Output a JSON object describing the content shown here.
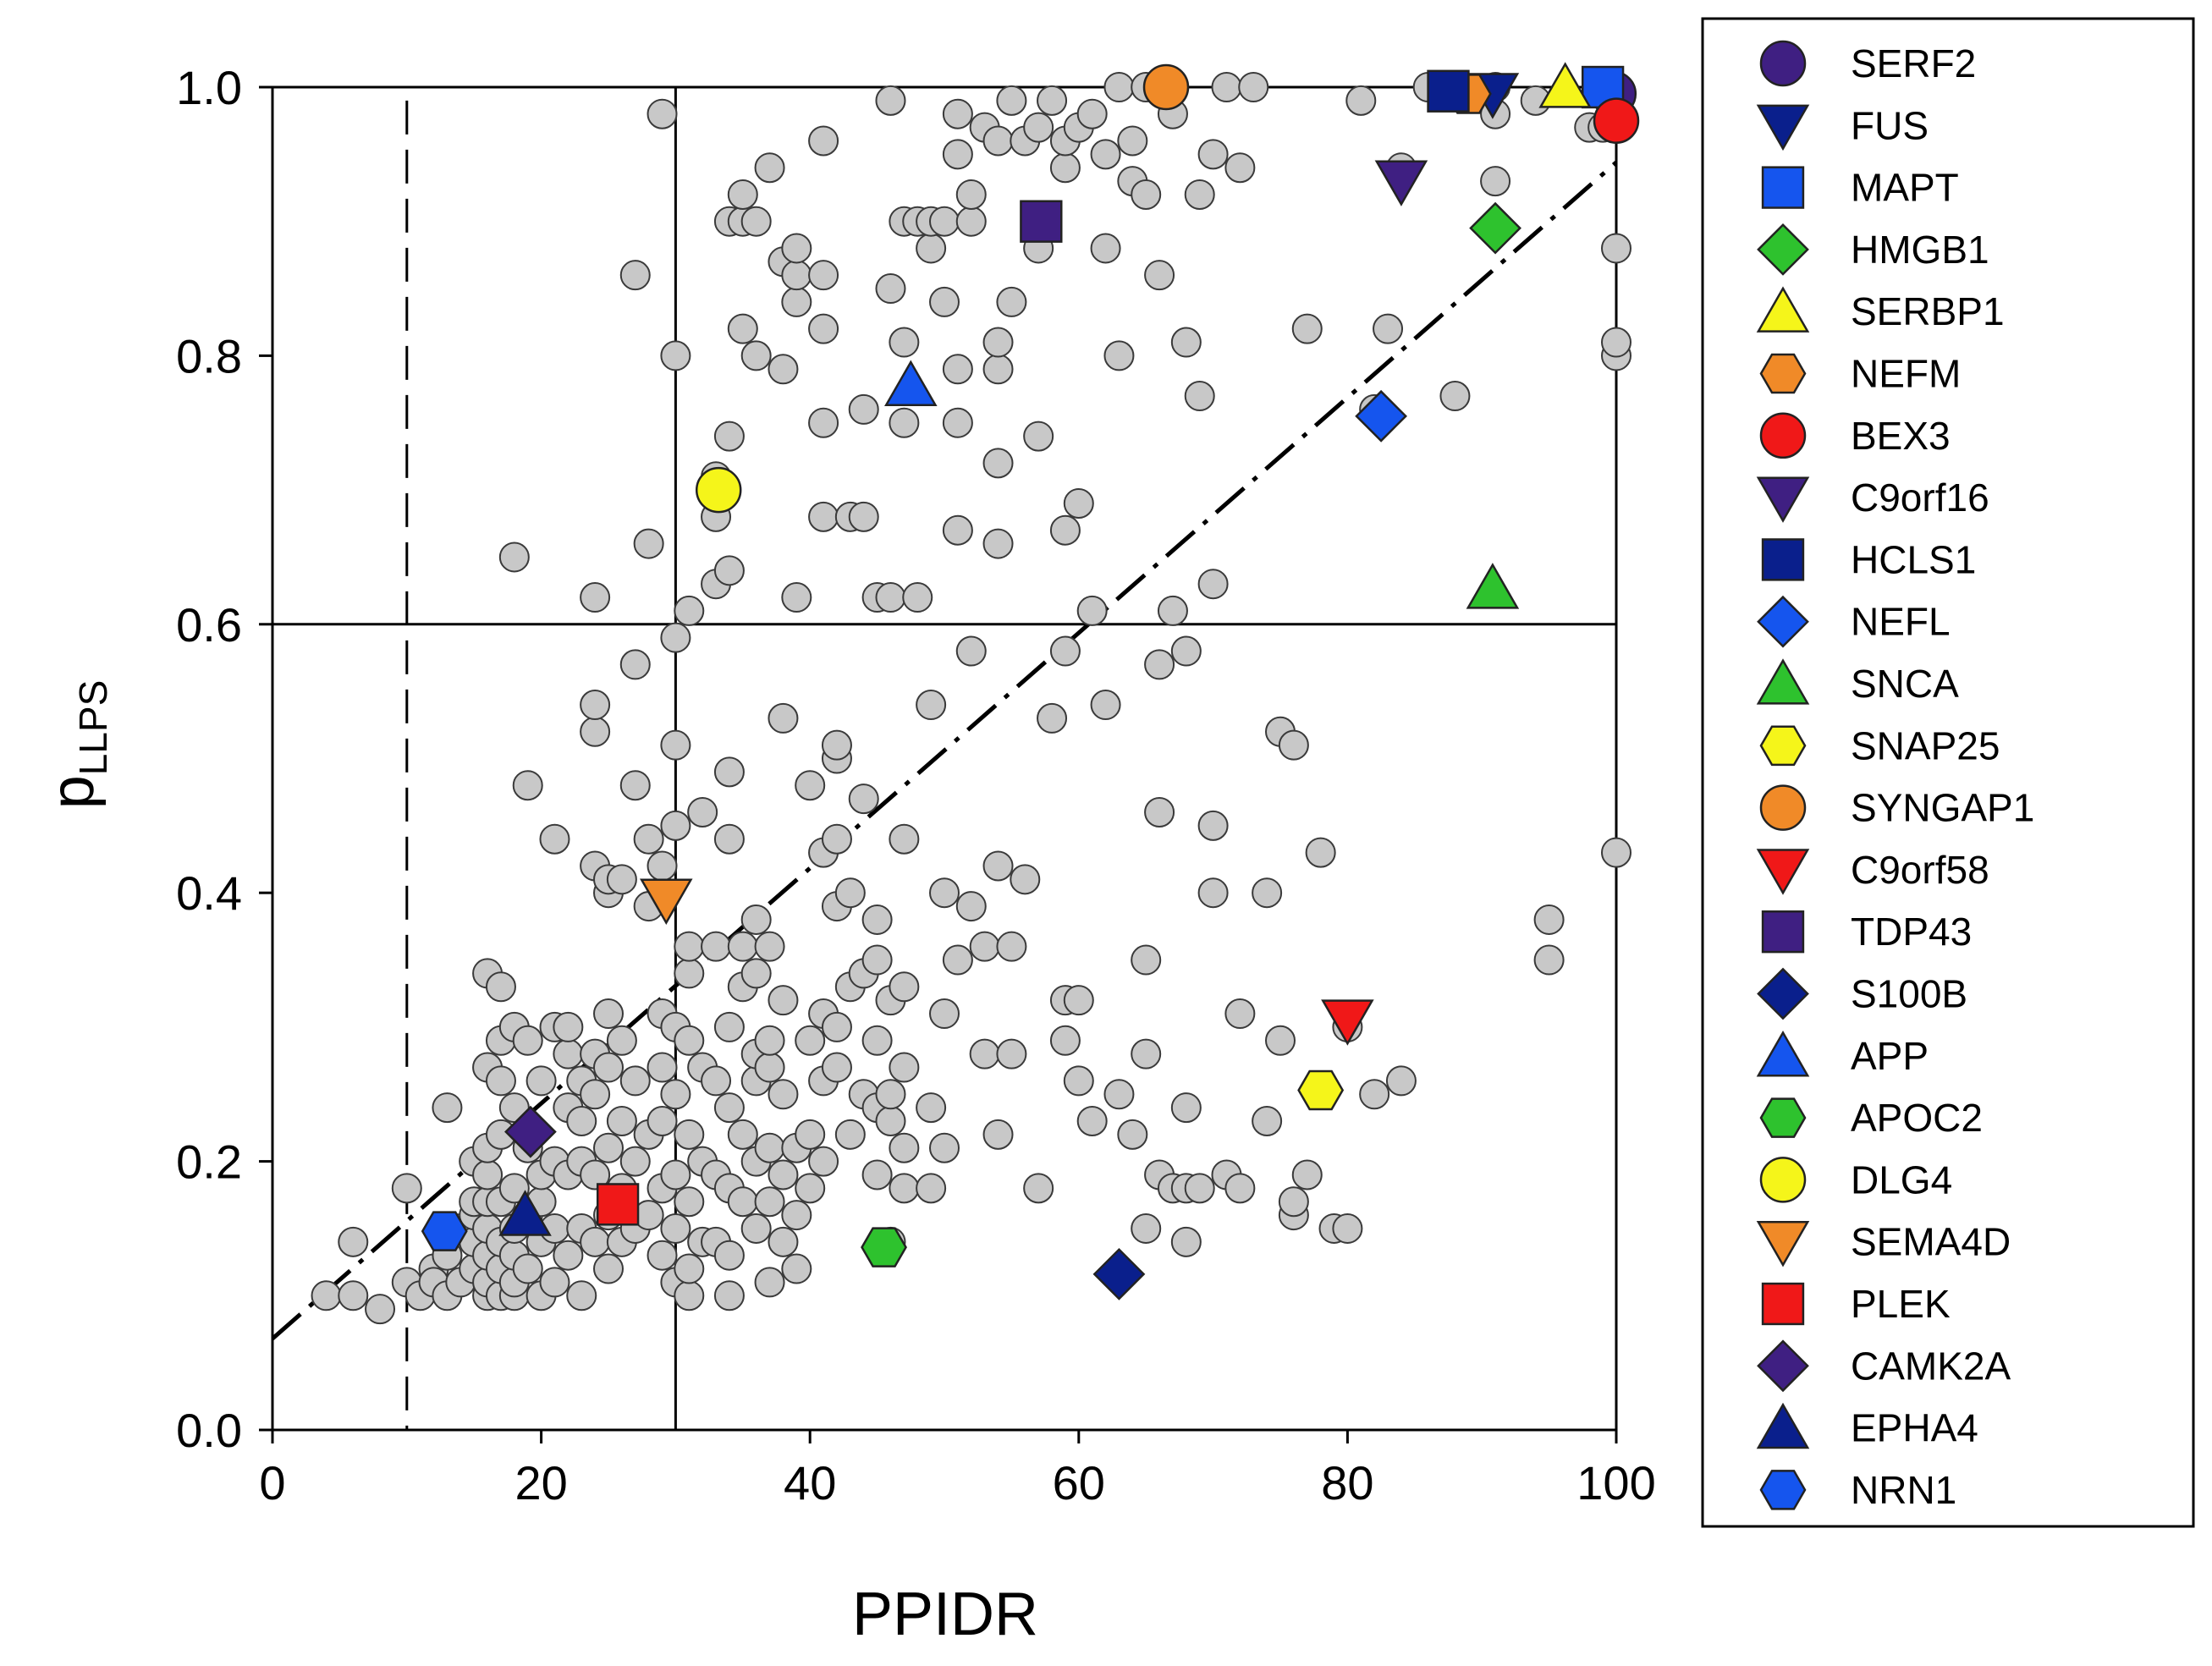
{
  "chart_data": {
    "type": "scatter",
    "xlabel": "PPIDR",
    "ylabel": "p",
    "ylabel_subscript": "LLPS",
    "xlim": [
      0,
      100
    ],
    "ylim": [
      0,
      1.0
    ],
    "x_ticks": [
      "0",
      "20",
      "40",
      "60",
      "80",
      "100"
    ],
    "y_ticks": [
      "0.0",
      "0.2",
      "0.4",
      "0.6",
      "0.8",
      "1.0"
    ],
    "grid": false,
    "legend_position": "right",
    "reference_lines": {
      "vertical_dashed_x": 10,
      "vertical_solid_x": 30,
      "horizontal_solid_y": 0.6,
      "trend_line": {
        "style": "dash-dot",
        "intercept": 0.068,
        "slope": 0.00876
      }
    },
    "background_points_color": "#c8c8c8",
    "background_points": [
      [
        4,
        0.1
      ],
      [
        6,
        0.1
      ],
      [
        6,
        0.14
      ],
      [
        8,
        0.09
      ],
      [
        10,
        0.11
      ],
      [
        10,
        0.18
      ],
      [
        11,
        0.1
      ],
      [
        12,
        0.12
      ],
      [
        12,
        0.11
      ],
      [
        13,
        0.1
      ],
      [
        13,
        0.13
      ],
      [
        13,
        0.24
      ],
      [
        14,
        0.11
      ],
      [
        14,
        0.15
      ],
      [
        15,
        0.12
      ],
      [
        15,
        0.14
      ],
      [
        15,
        0.16
      ],
      [
        15,
        0.17
      ],
      [
        15,
        0.2
      ],
      [
        16,
        0.1
      ],
      [
        16,
        0.11
      ],
      [
        16,
        0.13
      ],
      [
        16,
        0.15
      ],
      [
        16,
        0.17
      ],
      [
        16,
        0.19
      ],
      [
        16,
        0.21
      ],
      [
        16,
        0.27
      ],
      [
        16,
        0.34
      ],
      [
        17,
        0.1
      ],
      [
        17,
        0.12
      ],
      [
        17,
        0.14
      ],
      [
        17,
        0.17
      ],
      [
        17,
        0.22
      ],
      [
        17,
        0.26
      ],
      [
        17,
        0.29
      ],
      [
        17,
        0.33
      ],
      [
        18,
        0.1
      ],
      [
        18,
        0.11
      ],
      [
        18,
        0.13
      ],
      [
        18,
        0.15
      ],
      [
        18,
        0.18
      ],
      [
        18,
        0.24
      ],
      [
        18,
        0.3
      ],
      [
        18,
        0.65
      ],
      [
        19,
        0.12
      ],
      [
        19,
        0.16
      ],
      [
        19,
        0.21
      ],
      [
        19,
        0.29
      ],
      [
        19,
        0.48
      ],
      [
        20,
        0.1
      ],
      [
        20,
        0.14
      ],
      [
        20,
        0.17
      ],
      [
        20,
        0.19
      ],
      [
        20,
        0.26
      ],
      [
        21,
        0.11
      ],
      [
        21,
        0.15
      ],
      [
        21,
        0.2
      ],
      [
        21,
        0.3
      ],
      [
        21,
        0.44
      ],
      [
        22,
        0.13
      ],
      [
        22,
        0.19
      ],
      [
        22,
        0.24
      ],
      [
        22,
        0.28
      ],
      [
        22,
        0.3
      ],
      [
        23,
        0.1
      ],
      [
        23,
        0.15
      ],
      [
        23,
        0.2
      ],
      [
        23,
        0.23
      ],
      [
        23,
        0.26
      ],
      [
        24,
        0.14
      ],
      [
        24,
        0.19
      ],
      [
        24,
        0.25
      ],
      [
        24,
        0.28
      ],
      [
        24,
        0.42
      ],
      [
        24,
        0.52
      ],
      [
        24,
        0.54
      ],
      [
        24,
        0.62
      ],
      [
        25,
        0.12
      ],
      [
        25,
        0.16
      ],
      [
        25,
        0.21
      ],
      [
        25,
        0.27
      ],
      [
        25,
        0.31
      ],
      [
        25,
        0.4
      ],
      [
        25,
        0.41
      ],
      [
        26,
        0.14
      ],
      [
        26,
        0.18
      ],
      [
        26,
        0.23
      ],
      [
        26,
        0.29
      ],
      [
        26,
        0.41
      ],
      [
        27,
        0.15
      ],
      [
        27,
        0.2
      ],
      [
        27,
        0.26
      ],
      [
        27,
        0.48
      ],
      [
        27,
        0.57
      ],
      [
        27,
        0.86
      ],
      [
        28,
        0.16
      ],
      [
        28,
        0.22
      ],
      [
        28,
        0.39
      ],
      [
        28,
        0.44
      ],
      [
        28,
        0.66
      ],
      [
        29,
        0.13
      ],
      [
        29,
        0.18
      ],
      [
        29,
        0.23
      ],
      [
        29,
        0.27
      ],
      [
        29,
        0.31
      ],
      [
        29,
        0.42
      ],
      [
        29,
        0.98
      ],
      [
        30,
        0.11
      ],
      [
        30,
        0.15
      ],
      [
        30,
        0.19
      ],
      [
        30,
        0.25
      ],
      [
        30,
        0.3
      ],
      [
        30,
        0.45
      ],
      [
        30,
        0.51
      ],
      [
        30,
        0.59
      ],
      [
        30,
        0.8
      ],
      [
        31,
        0.1
      ],
      [
        31,
        0.12
      ],
      [
        31,
        0.17
      ],
      [
        31,
        0.22
      ],
      [
        31,
        0.29
      ],
      [
        31,
        0.34
      ],
      [
        31,
        0.36
      ],
      [
        31,
        0.61
      ],
      [
        32,
        0.14
      ],
      [
        32,
        0.2
      ],
      [
        32,
        0.27
      ],
      [
        32,
        0.46
      ],
      [
        33,
        0.14
      ],
      [
        33,
        0.19
      ],
      [
        33,
        0.26
      ],
      [
        33,
        0.36
      ],
      [
        33,
        0.63
      ],
      [
        33,
        0.68
      ],
      [
        33,
        0.71
      ],
      [
        34,
        0.1
      ],
      [
        34,
        0.13
      ],
      [
        34,
        0.18
      ],
      [
        34,
        0.24
      ],
      [
        34,
        0.3
      ],
      [
        34,
        0.44
      ],
      [
        34,
        0.49
      ],
      [
        34,
        0.64
      ],
      [
        34,
        0.74
      ],
      [
        34,
        0.9
      ],
      [
        35,
        0.17
      ],
      [
        35,
        0.22
      ],
      [
        35,
        0.33
      ],
      [
        35,
        0.36
      ],
      [
        35,
        0.82
      ],
      [
        35,
        0.9
      ],
      [
        35,
        0.92
      ],
      [
        36,
        0.15
      ],
      [
        36,
        0.2
      ],
      [
        36,
        0.26
      ],
      [
        36,
        0.28
      ],
      [
        36,
        0.34
      ],
      [
        36,
        0.38
      ],
      [
        36,
        0.8
      ],
      [
        36,
        0.9
      ],
      [
        37,
        0.11
      ],
      [
        37,
        0.17
      ],
      [
        37,
        0.21
      ],
      [
        37,
        0.27
      ],
      [
        37,
        0.29
      ],
      [
        37,
        0.36
      ],
      [
        37,
        0.94
      ],
      [
        38,
        0.14
      ],
      [
        38,
        0.19
      ],
      [
        38,
        0.25
      ],
      [
        38,
        0.32
      ],
      [
        38,
        0.53
      ],
      [
        38,
        0.79
      ],
      [
        38,
        0.87
      ],
      [
        39,
        0.12
      ],
      [
        39,
        0.16
      ],
      [
        39,
        0.21
      ],
      [
        39,
        0.62
      ],
      [
        39,
        0.84
      ],
      [
        39,
        0.86
      ],
      [
        39,
        0.88
      ],
      [
        40,
        0.18
      ],
      [
        40,
        0.22
      ],
      [
        40,
        0.29
      ],
      [
        40,
        0.48
      ],
      [
        41,
        0.2
      ],
      [
        41,
        0.26
      ],
      [
        41,
        0.31
      ],
      [
        41,
        0.43
      ],
      [
        41,
        0.68
      ],
      [
        41,
        0.75
      ],
      [
        41,
        0.82
      ],
      [
        41,
        0.86
      ],
      [
        41,
        0.96
      ],
      [
        42,
        0.27
      ],
      [
        42,
        0.3
      ],
      [
        42,
        0.39
      ],
      [
        42,
        0.44
      ],
      [
        42,
        0.5
      ],
      [
        42,
        0.51
      ],
      [
        43,
        0.22
      ],
      [
        43,
        0.33
      ],
      [
        43,
        0.4
      ],
      [
        43,
        0.68
      ],
      [
        44,
        0.25
      ],
      [
        44,
        0.34
      ],
      [
        44,
        0.47
      ],
      [
        44,
        0.68
      ],
      [
        44,
        0.76
      ],
      [
        45,
        0.19
      ],
      [
        45,
        0.24
      ],
      [
        45,
        0.29
      ],
      [
        45,
        0.35
      ],
      [
        45,
        0.38
      ],
      [
        45,
        0.62
      ],
      [
        46,
        0.14
      ],
      [
        46,
        0.23
      ],
      [
        46,
        0.25
      ],
      [
        46,
        0.32
      ],
      [
        46,
        0.62
      ],
      [
        46,
        0.85
      ],
      [
        46,
        0.99
      ],
      [
        47,
        0.18
      ],
      [
        47,
        0.21
      ],
      [
        47,
        0.27
      ],
      [
        47,
        0.33
      ],
      [
        47,
        0.44
      ],
      [
        47,
        0.75
      ],
      [
        47,
        0.81
      ],
      [
        47,
        0.9
      ],
      [
        48,
        0.62
      ],
      [
        48,
        0.9
      ],
      [
        49,
        0.18
      ],
      [
        49,
        0.24
      ],
      [
        49,
        0.54
      ],
      [
        49,
        0.88
      ],
      [
        49,
        0.9
      ],
      [
        50,
        0.21
      ],
      [
        50,
        0.31
      ],
      [
        50,
        0.4
      ],
      [
        50,
        0.84
      ],
      [
        50,
        0.9
      ],
      [
        51,
        0.35
      ],
      [
        51,
        0.67
      ],
      [
        51,
        0.75
      ],
      [
        51,
        0.79
      ],
      [
        51,
        0.95
      ],
      [
        51,
        0.98
      ],
      [
        52,
        0.39
      ],
      [
        52,
        0.58
      ],
      [
        52,
        0.9
      ],
      [
        52,
        0.92
      ],
      [
        53,
        0.28
      ],
      [
        53,
        0.36
      ],
      [
        53,
        0.97
      ],
      [
        54,
        0.22
      ],
      [
        54,
        0.42
      ],
      [
        54,
        0.66
      ],
      [
        54,
        0.72
      ],
      [
        54,
        0.79
      ],
      [
        54,
        0.81
      ],
      [
        54,
        0.96
      ],
      [
        55,
        0.28
      ],
      [
        55,
        0.36
      ],
      [
        55,
        0.84
      ],
      [
        55,
        0.99
      ],
      [
        56,
        0.41
      ],
      [
        56,
        0.96
      ],
      [
        57,
        0.18
      ],
      [
        57,
        0.74
      ],
      [
        57,
        0.88
      ],
      [
        57,
        0.97
      ],
      [
        58,
        0.53
      ],
      [
        58,
        0.99
      ],
      [
        59,
        0.29
      ],
      [
        59,
        0.32
      ],
      [
        59,
        0.58
      ],
      [
        59,
        0.67
      ],
      [
        59,
        0.94
      ],
      [
        59,
        0.96
      ],
      [
        60,
        0.26
      ],
      [
        60,
        0.32
      ],
      [
        60,
        0.69
      ],
      [
        60,
        0.97
      ],
      [
        61,
        0.23
      ],
      [
        61,
        0.61
      ],
      [
        61,
        0.98
      ],
      [
        62,
        0.54
      ],
      [
        62,
        0.88
      ],
      [
        62,
        0.95
      ],
      [
        63,
        0.25
      ],
      [
        63,
        0.8
      ],
      [
        63,
        1.0
      ],
      [
        64,
        0.22
      ],
      [
        64,
        0.93
      ],
      [
        64,
        0.96
      ],
      [
        65,
        0.15
      ],
      [
        65,
        0.28
      ],
      [
        65,
        0.35
      ],
      [
        65,
        0.92
      ],
      [
        65,
        1.0
      ],
      [
        66,
        0.19
      ],
      [
        66,
        0.46
      ],
      [
        66,
        0.57
      ],
      [
        66,
        0.86
      ],
      [
        67,
        0.18
      ],
      [
        67,
        0.61
      ],
      [
        67,
        0.98
      ],
      [
        68,
        0.14
      ],
      [
        68,
        0.18
      ],
      [
        68,
        0.24
      ],
      [
        68,
        0.58
      ],
      [
        68,
        0.81
      ],
      [
        69,
        0.18
      ],
      [
        69,
        0.77
      ],
      [
        69,
        0.92
      ],
      [
        70,
        0.4
      ],
      [
        70,
        0.45
      ],
      [
        70,
        0.63
      ],
      [
        70,
        0.95
      ],
      [
        71,
        0.19
      ],
      [
        71,
        1.0
      ],
      [
        72,
        0.18
      ],
      [
        72,
        0.31
      ],
      [
        72,
        0.94
      ],
      [
        73,
        1.0
      ],
      [
        74,
        0.23
      ],
      [
        74,
        0.4
      ],
      [
        75,
        0.29
      ],
      [
        75,
        0.52
      ],
      [
        76,
        0.16
      ],
      [
        76,
        0.17
      ],
      [
        76,
        0.51
      ],
      [
        77,
        0.19
      ],
      [
        77,
        0.82
      ],
      [
        78,
        0.43
      ],
      [
        79,
        0.15
      ],
      [
        80,
        0.15
      ],
      [
        80,
        0.3
      ],
      [
        81,
        0.99
      ],
      [
        82,
        0.25
      ],
      [
        82,
        0.76
      ],
      [
        83,
        0.82
      ],
      [
        84,
        0.26
      ],
      [
        84,
        0.94
      ],
      [
        86,
        1.0
      ],
      [
        88,
        0.77
      ],
      [
        91,
        0.93
      ],
      [
        91,
        0.98
      ],
      [
        91,
        1.0
      ],
      [
        94,
        0.99
      ],
      [
        95,
        0.35
      ],
      [
        95,
        0.38
      ],
      [
        98,
        0.97
      ],
      [
        99,
        0.97
      ],
      [
        100,
        0.43
      ],
      [
        100,
        0.8
      ],
      [
        100,
        0.81
      ],
      [
        100,
        0.88
      ],
      [
        100,
        0.98
      ],
      [
        100,
        1.0
      ]
    ],
    "series": [
      {
        "name": "SERF2",
        "marker": "circle",
        "color": "#3f1f82",
        "x": 99.8,
        "y": 0.995
      },
      {
        "name": "FUS",
        "marker": "tri-down",
        "color": "#0a1f8c",
        "x": 90.8,
        "y": 0.995
      },
      {
        "name": "MAPT",
        "marker": "square",
        "color": "#1555ee",
        "x": 99.0,
        "y": 1.0
      },
      {
        "name": "HMGB1",
        "marker": "diamond",
        "color": "#2ec22e",
        "x": 91.0,
        "y": 0.895
      },
      {
        "name": "SERBP1",
        "marker": "tri-up",
        "color": "#f5f51a",
        "x": 96.2,
        "y": 1.0
      },
      {
        "name": "NEFM",
        "marker": "hexagon",
        "color": "#f08a28",
        "x": 89.0,
        "y": 0.995
      },
      {
        "name": "BEX3",
        "marker": "circle",
        "color": "#f01818",
        "x": 100.0,
        "y": 0.975
      },
      {
        "name": "C9orf16",
        "marker": "tri-down",
        "color": "#3f1f82",
        "x": 84.0,
        "y": 0.93
      },
      {
        "name": "HCLS1",
        "marker": "square",
        "color": "#0a1f8c",
        "x": 87.5,
        "y": 0.997
      },
      {
        "name": "NEFL",
        "marker": "diamond",
        "color": "#1555ee",
        "x": 82.5,
        "y": 0.755
      },
      {
        "name": "SNCA",
        "marker": "tri-up",
        "color": "#2ec22e",
        "x": 90.8,
        "y": 0.627
      },
      {
        "name": "SNAP25",
        "marker": "hexagon",
        "color": "#f5f51a",
        "x": 78.0,
        "y": 0.253
      },
      {
        "name": "SYNGAP1",
        "marker": "circle",
        "color": "#f08a28",
        "x": 66.5,
        "y": 1.0
      },
      {
        "name": "C9orf58",
        "marker": "tri-down",
        "color": "#f01818",
        "x": 80.0,
        "y": 0.305
      },
      {
        "name": "TDP43",
        "marker": "square",
        "color": "#3f1f82",
        "x": 57.2,
        "y": 0.9
      },
      {
        "name": "S100B",
        "marker": "diamond",
        "color": "#0a1f8c",
        "x": 63.0,
        "y": 0.116
      },
      {
        "name": "APP",
        "marker": "tri-up",
        "color": "#1555ee",
        "x": 47.5,
        "y": 0.778
      },
      {
        "name": "APOC2",
        "marker": "hexagon",
        "color": "#2ec22e",
        "x": 45.5,
        "y": 0.136
      },
      {
        "name": "DLG4",
        "marker": "circle",
        "color": "#f5f51a",
        "x": 33.2,
        "y": 0.7
      },
      {
        "name": "SEMA4D",
        "marker": "tri-down",
        "color": "#f08a28",
        "x": 29.3,
        "y": 0.395
      },
      {
        "name": "PLEK",
        "marker": "square",
        "color": "#f01818",
        "x": 25.7,
        "y": 0.168
      },
      {
        "name": "CAMK2A",
        "marker": "diamond",
        "color": "#3f1f82",
        "x": 19.2,
        "y": 0.222
      },
      {
        "name": "EPHA4",
        "marker": "tri-up",
        "color": "#0a1f8c",
        "x": 18.8,
        "y": 0.16
      },
      {
        "name": "NRN1",
        "marker": "hexagon",
        "color": "#1555ee",
        "x": 12.8,
        "y": 0.148
      }
    ]
  }
}
